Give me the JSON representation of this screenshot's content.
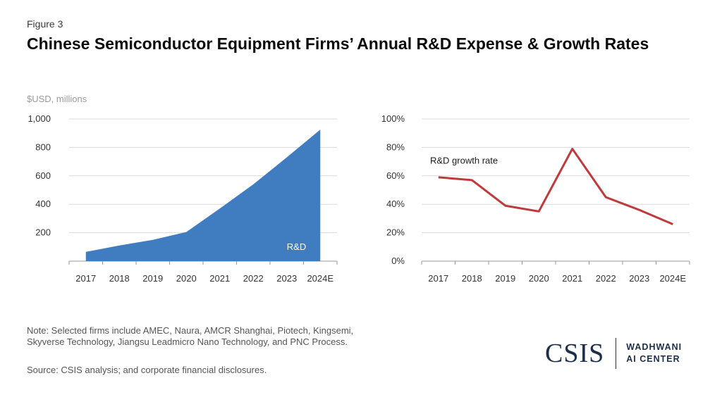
{
  "figure_label": "Figure 3",
  "title": "Chinese Semiconductor Equipment Firms’ Annual R&D Expense & Growth Rates",
  "unit_label": "$USD, millions",
  "note": "Note: Selected firms include AMEC, Naura, AMCR Shanghai, Piotech, Kingsemi, Skyverse Technology, Jiangsu Leadmicro Nano Technology, and PNC Process.",
  "source": "Source: CSIS analysis; and corporate financial disclosures.",
  "logo": {
    "main": "CSIS",
    "line1": "WADHWANI",
    "line2": "AI CENTER"
  },
  "colors": {
    "area": "#3f7cc0",
    "line": "#c0393b",
    "grid": "#d9d9d9"
  },
  "chart_data": [
    {
      "type": "area",
      "categories": [
        "2017",
        "2018",
        "2019",
        "2020",
        "2021",
        "2022",
        "2023",
        "2024E"
      ],
      "series": [
        {
          "name": "R&D",
          "values": [
            65,
            110,
            150,
            205,
            370,
            540,
            730,
            925
          ]
        }
      ],
      "ylim": [
        0,
        1000
      ],
      "yticks": [
        200,
        400,
        600,
        800,
        1000
      ],
      "ytick_labels": [
        "200",
        "400",
        "600",
        "800",
        "1,000"
      ],
      "grid": true,
      "xlabel": "",
      "ylabel": ""
    },
    {
      "type": "line",
      "categories": [
        "2017",
        "2018",
        "2019",
        "2020",
        "2021",
        "2022",
        "2023",
        "2024E"
      ],
      "series": [
        {
          "name": "R&D growth rate",
          "values": [
            59,
            57,
            39,
            35,
            79,
            45,
            36,
            26
          ]
        }
      ],
      "ylim": [
        0,
        100
      ],
      "yticks": [
        0,
        20,
        40,
        60,
        80,
        100
      ],
      "ytick_labels": [
        "0%",
        "20%",
        "40%",
        "60%",
        "80%",
        "100%"
      ],
      "grid": true,
      "xlabel": "",
      "ylabel": ""
    }
  ]
}
